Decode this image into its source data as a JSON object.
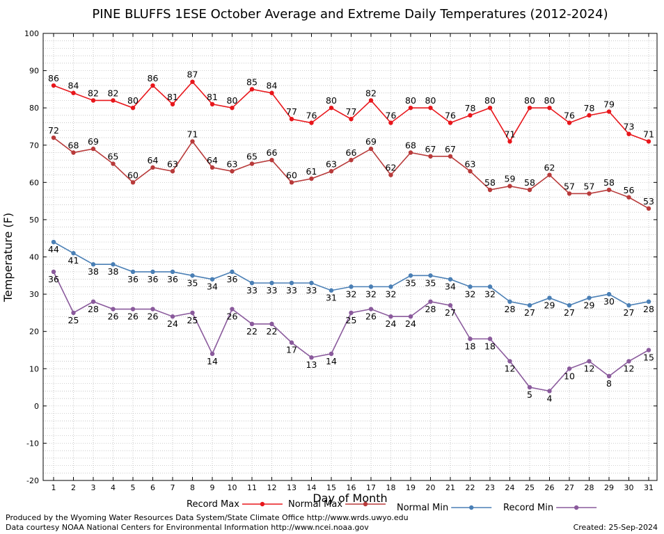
{
  "chart_data": {
    "type": "line",
    "title": "PINE BLUFFS 1ESE October Average and Extreme Daily Temperatures (2012-2024)",
    "xlabel": "Day of Month",
    "ylabel": "Temperature (F)",
    "ylim": [
      -20,
      100
    ],
    "yticks": [
      -20,
      -10,
      0,
      10,
      20,
      30,
      40,
      50,
      60,
      70,
      80,
      90,
      100
    ],
    "x": [
      1,
      2,
      3,
      4,
      5,
      6,
      7,
      8,
      9,
      10,
      11,
      12,
      13,
      14,
      15,
      16,
      17,
      18,
      19,
      20,
      21,
      22,
      23,
      24,
      25,
      26,
      27,
      28,
      29,
      30,
      31
    ],
    "grid": true,
    "legend_position": "bottom",
    "series": [
      {
        "name": "Record Max",
        "color": "#e8161b",
        "label_pos": "above",
        "values": [
          86,
          84,
          82,
          82,
          80,
          86,
          81,
          87,
          81,
          80,
          85,
          84,
          77,
          76,
          80,
          77,
          82,
          76,
          80,
          80,
          76,
          78,
          80,
          71,
          80,
          80,
          76,
          78,
          79,
          73,
          71
        ]
      },
      {
        "name": "Normal Max",
        "color": "#b83a3a",
        "label_pos": "above",
        "values": [
          72,
          68,
          69,
          65,
          60,
          64,
          63,
          71,
          64,
          63,
          65,
          66,
          60,
          61,
          63,
          66,
          69,
          62,
          68,
          67,
          67,
          63,
          58,
          59,
          58,
          62,
          57,
          57,
          58,
          56,
          53
        ]
      },
      {
        "name": "Normal Min",
        "color": "#4a7fb5",
        "label_pos": "below",
        "values": [
          44,
          41,
          38,
          38,
          36,
          36,
          36,
          35,
          34,
          36,
          33,
          33,
          33,
          33,
          31,
          32,
          32,
          32,
          35,
          35,
          34,
          32,
          32,
          28,
          27,
          29,
          27,
          29,
          30,
          27,
          28
        ]
      },
      {
        "name": "Record Min",
        "color": "#8a5a9c",
        "label_pos": "below",
        "values": [
          36,
          25,
          28,
          26,
          26,
          26,
          24,
          25,
          14,
          26,
          22,
          22,
          17,
          13,
          14,
          25,
          26,
          24,
          24,
          28,
          27,
          18,
          18,
          12,
          5,
          4,
          10,
          12,
          8,
          12,
          15
        ]
      }
    ]
  },
  "footer": {
    "produced_by": "Produced by the Wyoming Water Resources Data System/State Climate Office http://www.wrds.uwyo.edu",
    "data_courtesy": "Data courtesy NOAA National Centers for Environmental Information http://www.ncei.noaa.gov",
    "created": "Created: 25-Sep-2024"
  }
}
